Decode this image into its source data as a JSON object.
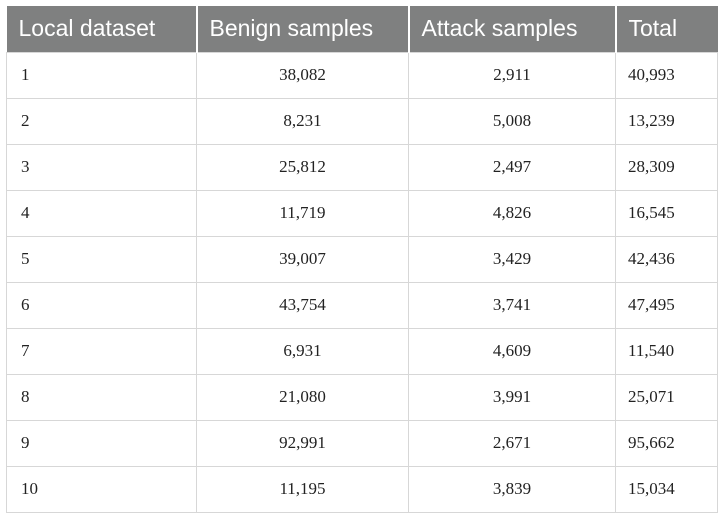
{
  "table": {
    "headers": [
      "Local dataset",
      "Benign samples",
      "Attack samples",
      "Total"
    ],
    "rows": [
      [
        "1",
        "38,082",
        "2,911",
        "40,993"
      ],
      [
        "2",
        "8,231",
        "5,008",
        "13,239"
      ],
      [
        "3",
        "25,812",
        "2,497",
        "28,309"
      ],
      [
        "4",
        "11,719",
        "4,826",
        "16,545"
      ],
      [
        "5",
        "39,007",
        "3,429",
        "42,436"
      ],
      [
        "6",
        "43,754",
        "3,741",
        "47,495"
      ],
      [
        "7",
        "6,931",
        "4,609",
        "11,540"
      ],
      [
        "8",
        "21,080",
        "3,991",
        "25,071"
      ],
      [
        "9",
        "92,991",
        "2,671",
        "95,662"
      ],
      [
        "10",
        "11,195",
        "3,839",
        "15,034"
      ]
    ]
  },
  "colors": {
    "header_bg": "#7f8080",
    "header_text": "#ffffff",
    "border": "#d7d7d7"
  }
}
